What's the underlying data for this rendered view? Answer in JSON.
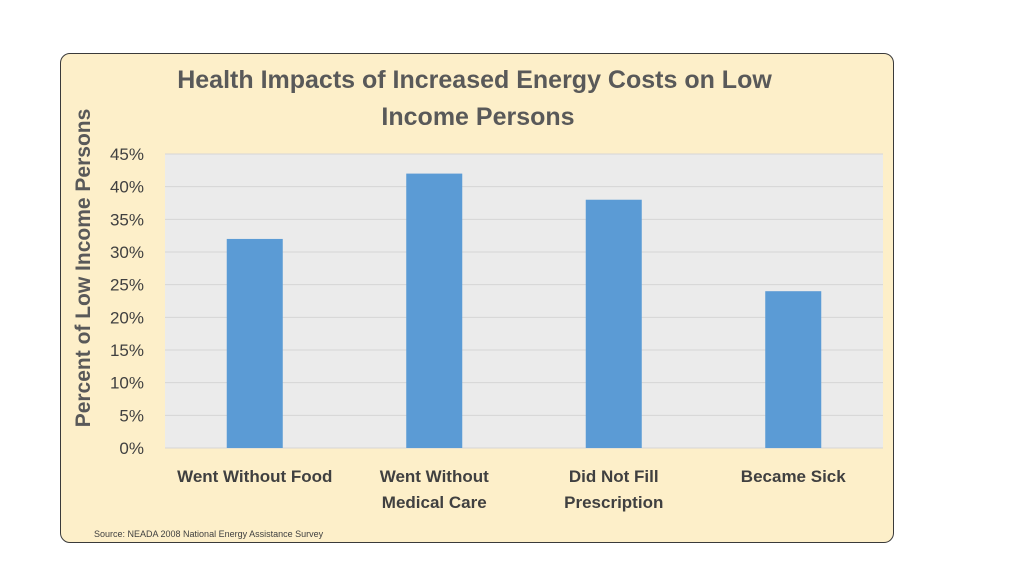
{
  "chart_data": {
    "type": "bar",
    "title": "Health Impacts of Increased Energy Costs on Low Income Persons",
    "title_lines": [
      "Health Impacts of Increased Energy Costs on Low",
      "Income Persons"
    ],
    "xlabel": "",
    "ylabel": "Percent of Low Income Persons",
    "categories": [
      "Went Without Food",
      "Went Without Medical Care",
      "Did Not Fill Prescription",
      "Became Sick"
    ],
    "category_lines": [
      [
        "Went Without Food"
      ],
      [
        "Went Without",
        "Medical Care"
      ],
      [
        "Did Not Fill",
        "Prescription"
      ],
      [
        "Became Sick"
      ]
    ],
    "values": [
      32,
      42,
      38,
      24
    ],
    "ylim": [
      0,
      45
    ],
    "yticks": [
      0,
      5,
      10,
      15,
      20,
      25,
      30,
      35,
      40,
      45
    ],
    "ytick_labels": [
      "0%",
      "5%",
      "10%",
      "15%",
      "20%",
      "25%",
      "30%",
      "35%",
      "40%",
      "45%"
    ],
    "grid": true,
    "source": "Source: NEADA 2008 National Energy Assistance Survey",
    "colors": {
      "bar": "#5b9bd5",
      "plot_background": "#ebebeb",
      "panel_background": "#fdefc9"
    }
  }
}
